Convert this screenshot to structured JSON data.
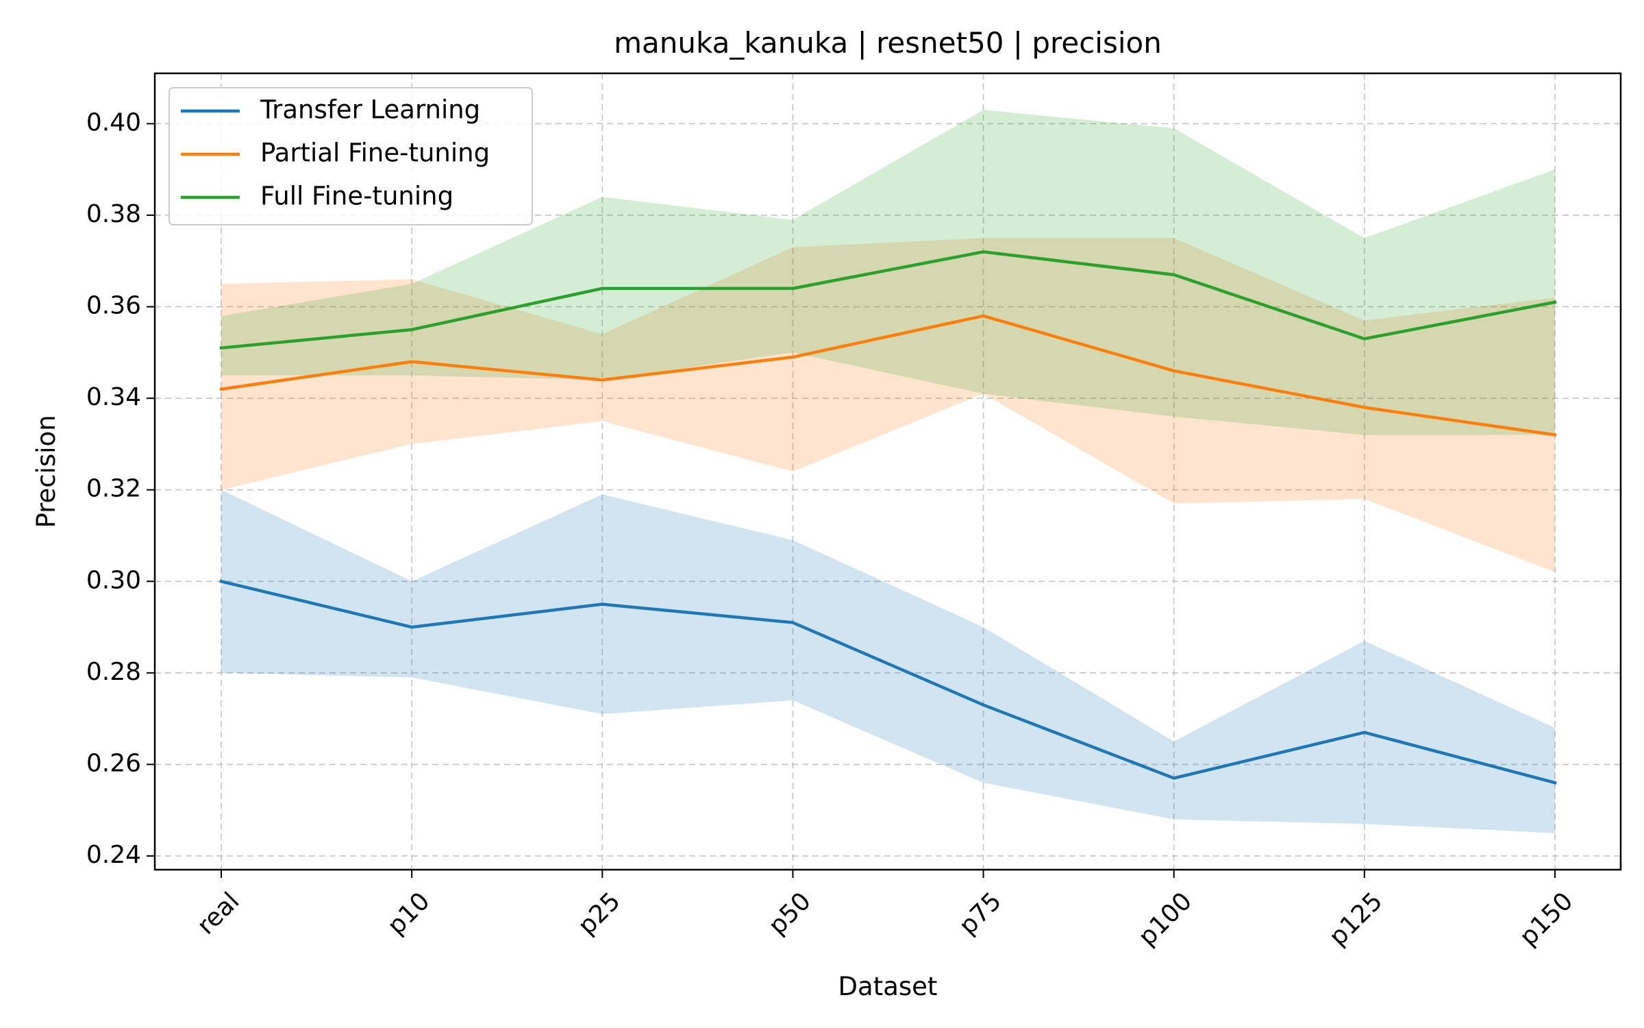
{
  "chart_data": {
    "type": "line",
    "title": "manuka_kanuka | resnet50 | precision",
    "xlabel": "Dataset",
    "ylabel": "Precision",
    "categories": [
      "real",
      "p10",
      "p25",
      "p50",
      "p75",
      "p100",
      "p125",
      "p150"
    ],
    "ylim": [
      0.237,
      0.411
    ],
    "yticks": [
      "0.24",
      "0.26",
      "0.28",
      "0.30",
      "0.32",
      "0.34",
      "0.36",
      "0.38",
      "0.40"
    ],
    "grid": true,
    "legend_position": "top-left",
    "series": [
      {
        "name": "Transfer Learning",
        "color": "#1f77b4",
        "values": [
          0.3,
          0.29,
          0.295,
          0.291,
          0.273,
          0.257,
          0.267,
          0.256
        ],
        "lower": [
          0.28,
          0.279,
          0.271,
          0.274,
          0.256,
          0.248,
          0.247,
          0.245
        ],
        "upper": [
          0.32,
          0.3,
          0.319,
          0.309,
          0.29,
          0.265,
          0.287,
          0.268
        ]
      },
      {
        "name": "Partial Fine-tuning",
        "color": "#ff7f0e",
        "values": [
          0.342,
          0.348,
          0.344,
          0.349,
          0.358,
          0.346,
          0.338,
          0.332
        ],
        "lower": [
          0.32,
          0.33,
          0.335,
          0.324,
          0.341,
          0.317,
          0.318,
          0.302
        ],
        "upper": [
          0.365,
          0.366,
          0.354,
          0.373,
          0.375,
          0.375,
          0.357,
          0.362
        ]
      },
      {
        "name": "Full Fine-tuning",
        "color": "#2ca02c",
        "values": [
          0.351,
          0.355,
          0.364,
          0.364,
          0.372,
          0.367,
          0.353,
          0.361
        ],
        "lower": [
          0.345,
          0.345,
          0.344,
          0.35,
          0.341,
          0.336,
          0.332,
          0.332
        ],
        "upper": [
          0.358,
          0.365,
          0.384,
          0.379,
          0.403,
          0.399,
          0.375,
          0.39
        ]
      }
    ]
  }
}
